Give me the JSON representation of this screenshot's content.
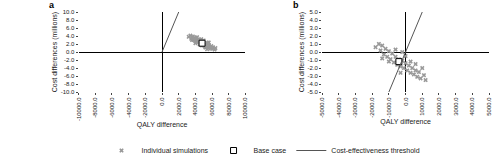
{
  "chart_data": [
    {
      "type": "scatter",
      "title": "a",
      "x_label": "QALY difference",
      "y_label": "Cost differences (millions)",
      "xlim": [
        -10000,
        10000
      ],
      "xticks": [
        {
          "value": -10000,
          "label": "-10000.0"
        },
        {
          "value": -8000,
          "label": "-8000.0"
        },
        {
          "value": -6000,
          "label": "-6000.0"
        },
        {
          "value": -4000,
          "label": "-4000.0"
        },
        {
          "value": -2000,
          "label": "-2000.0"
        },
        {
          "value": 0,
          "label": "0.0"
        },
        {
          "value": 2000,
          "label": "2000.0"
        },
        {
          "value": 4000,
          "label": "4000.0"
        },
        {
          "value": 6000,
          "label": "6000.0"
        },
        {
          "value": 8000,
          "label": "8000.0"
        },
        {
          "value": 10000,
          "label": "10000.0"
        }
      ],
      "ylim": [
        -10,
        10
      ],
      "yticks": [
        {
          "value": -10,
          "label": "-10.0"
        },
        {
          "value": -8,
          "label": "-8.0"
        },
        {
          "value": -6,
          "label": "-6.0"
        },
        {
          "value": -4,
          "label": "-4.0"
        },
        {
          "value": -2,
          "label": "-2.0"
        },
        {
          "value": 0,
          "label": "0.0"
        },
        {
          "value": 2,
          "label": "2.0"
        },
        {
          "value": 4,
          "label": "4.0"
        },
        {
          "value": 6,
          "label": "6.0"
        },
        {
          "value": 8,
          "label": "8.0"
        },
        {
          "value": 10,
          "label": "10.0"
        }
      ],
      "grid": false,
      "legend": "bottom",
      "series": [
        {
          "name": "Individual simulations",
          "type": "scatter",
          "marker": "x",
          "color": "#999999",
          "x": [
            3200,
            3400,
            3500,
            3700,
            3800,
            3900,
            4000,
            4100,
            4200,
            4300,
            4400,
            4500,
            4500,
            4600,
            4700,
            4800,
            4800,
            4900,
            5000,
            5000,
            5100,
            5200,
            5300,
            5400,
            5500,
            5600,
            5700,
            5800,
            5900,
            6000,
            6100,
            6300,
            4200,
            5200,
            4000,
            5600,
            3600,
            6400,
            4700,
            5400
          ],
          "y": [
            3.8,
            4.1,
            3.3,
            3.9,
            3.0,
            3.6,
            2.7,
            3.4,
            2.9,
            2.4,
            3.1,
            2.6,
            1.9,
            2.8,
            2.1,
            2.5,
            1.6,
            2.3,
            1.8,
            2.9,
            1.4,
            2.0,
            1.6,
            2.3,
            1.1,
            1.7,
            1.3,
            0.9,
            1.5,
            0.8,
            1.2,
            0.6,
            3.7,
            1.1,
            2.2,
            2.4,
            3.0,
            1.0,
            3.2,
            0.7
          ]
        },
        {
          "name": "Base case",
          "type": "scatter",
          "marker": "square",
          "color": "#ffffff",
          "x": [
            4800
          ],
          "y": [
            2.2
          ]
        },
        {
          "name": "Cost-effectiveness threshold",
          "type": "line",
          "line_style": "solid",
          "color": "#555555",
          "x": [
            0,
            2000
          ],
          "y": [
            0,
            10
          ]
        }
      ]
    },
    {
      "type": "scatter",
      "title": "b",
      "x_label": "QALY difference",
      "y_label": "Cost differences (millions)",
      "xlim": [
        -5000,
        5000
      ],
      "xticks": [
        {
          "value": -5000,
          "label": "-5000.0"
        },
        {
          "value": -4000,
          "label": "-4000.0"
        },
        {
          "value": -3000,
          "label": "-3000.0"
        },
        {
          "value": -2000,
          "label": "-2000.0"
        },
        {
          "value": -1000,
          "label": "-1000.0"
        },
        {
          "value": 0,
          "label": "0.0"
        },
        {
          "value": 1000,
          "label": "1000.0"
        },
        {
          "value": 2000,
          "label": "2000.0"
        },
        {
          "value": 3000,
          "label": "3000.0"
        },
        {
          "value": 4000,
          "label": "4000.0"
        },
        {
          "value": 5000,
          "label": "5000.0"
        }
      ],
      "ylim": [
        -5,
        5
      ],
      "yticks": [
        {
          "value": -5,
          "label": "-5.0"
        },
        {
          "value": -4,
          "label": "-4.0"
        },
        {
          "value": -3,
          "label": "-3.0"
        },
        {
          "value": -2,
          "label": "-2.0"
        },
        {
          "value": -1,
          "label": "-1.0"
        },
        {
          "value": 0,
          "label": "0.0"
        },
        {
          "value": 1,
          "label": "1.0"
        },
        {
          "value": 2,
          "label": "2.0"
        },
        {
          "value": 3,
          "label": "3.0"
        },
        {
          "value": 4,
          "label": "4.0"
        },
        {
          "value": 5,
          "label": "5.0"
        }
      ],
      "grid": false,
      "legend": "bottom",
      "series": [
        {
          "name": "Individual simulations",
          "type": "scatter",
          "marker": "x",
          "color": "#999999",
          "x": [
            -1800,
            -1600,
            -1500,
            -1400,
            -1300,
            -1200,
            -1100,
            -1000,
            -900,
            -800,
            -700,
            -600,
            -500,
            -400,
            -300,
            -200,
            -100,
            0,
            100,
            200,
            300,
            400,
            500,
            600,
            700,
            800,
            900,
            1100,
            1200,
            -1000,
            -600,
            0,
            300,
            -300,
            600,
            -1400,
            1000,
            -200
          ],
          "y": [
            0.6,
            1.0,
            0.2,
            0.8,
            -0.3,
            0.4,
            -0.6,
            0.1,
            -0.9,
            -0.2,
            -1.3,
            -0.6,
            -1.6,
            -0.9,
            -1.8,
            -1.1,
            -2.0,
            -1.4,
            -2.3,
            -1.7,
            -2.6,
            -2.0,
            -2.8,
            -2.3,
            -3.1,
            -2.5,
            -3.3,
            -2.9,
            -3.5,
            -1.2,
            0.3,
            -0.5,
            -1.2,
            -2.6,
            -1.5,
            -0.8,
            -2.0,
            0.0
          ]
        },
        {
          "name": "Base case",
          "type": "scatter",
          "marker": "square",
          "color": "#ffffff",
          "x": [
            -400
          ],
          "y": [
            -1.2
          ]
        },
        {
          "name": "Cost-effectiveness threshold",
          "type": "line",
          "line_style": "solid",
          "color": "#555555",
          "x": [
            -1000,
            1000
          ],
          "y": [
            -5,
            5
          ]
        }
      ]
    }
  ]
}
